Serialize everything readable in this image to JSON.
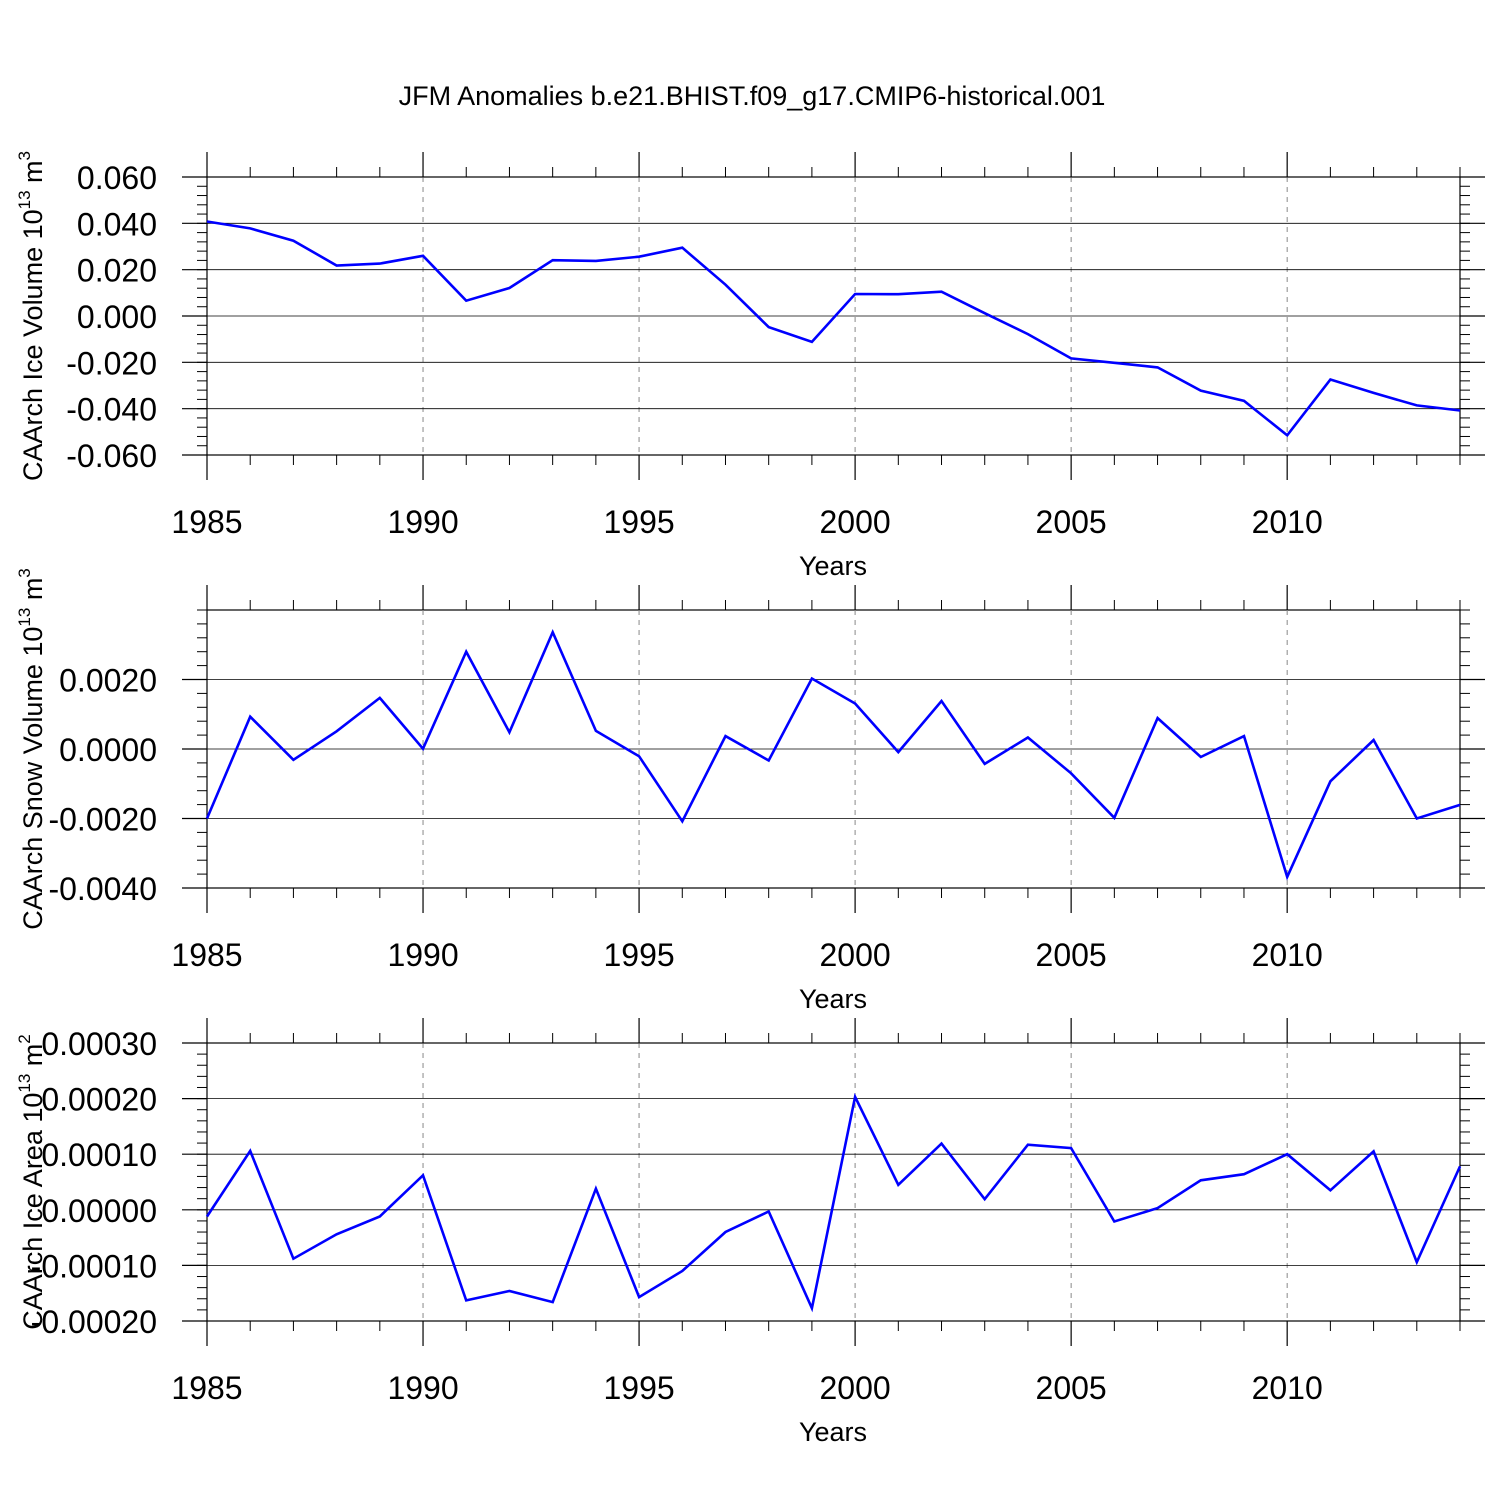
{
  "title": "JFM Anomalies b.e21.BHIST.f09_g17.CMIP6-historical.001",
  "line_color": "#0000ff",
  "chart_data": [
    {
      "type": "line",
      "title": "JFM Anomalies b.e21.BHIST.f09_g17.CMIP6-historical.001",
      "xlabel": "Years",
      "ylabel": "CAArch Ice Volume 10",
      "ylabel_exp": "13",
      "ylabel_unit": " m",
      "ylabel_unit_exp": "3",
      "xlim": [
        1985,
        2014
      ],
      "ylim": [
        -0.06,
        0.06
      ],
      "xticks": [
        1985,
        1990,
        1995,
        2000,
        2005,
        2010
      ],
      "xtick_labels": [
        "1985",
        "1990",
        "1995",
        "2000",
        "2005",
        "2010"
      ],
      "yticks": [
        -0.06,
        -0.04,
        -0.02,
        0.0,
        0.02,
        0.04,
        0.06
      ],
      "ytick_labels": [
        "-0.060",
        "-0.040",
        "-0.020",
        "0.000",
        "0.020",
        "0.040",
        "0.060"
      ],
      "series": [
        {
          "name": "CAArch Ice Volume",
          "x": [
            1985,
            1986,
            1987,
            1988,
            1989,
            1990,
            1991,
            1992,
            1993,
            1994,
            1995,
            1996,
            1997,
            1998,
            1999,
            2000,
            2001,
            2002,
            2003,
            2004,
            2005,
            2006,
            2007,
            2008,
            2009,
            2010,
            2011,
            2012,
            2013,
            2014
          ],
          "values": [
            0.0408,
            0.0378,
            0.0325,
            0.0218,
            0.0226,
            0.026,
            0.0066,
            0.0121,
            0.0241,
            0.0238,
            0.0256,
            0.0295,
            0.0135,
            -0.0048,
            -0.0112,
            0.0095,
            0.0094,
            0.0105,
            0.0012,
            -0.0078,
            -0.0183,
            -0.0202,
            -0.0222,
            -0.0322,
            -0.0366,
            -0.0515,
            -0.0274,
            -0.0332,
            -0.0386,
            -0.0408
          ]
        }
      ]
    },
    {
      "type": "line",
      "xlabel": "Years",
      "ylabel": "CAArch Snow Volume 10",
      "ylabel_exp": "13",
      "ylabel_unit": " m",
      "ylabel_unit_exp": "3",
      "xlim": [
        1985,
        2014
      ],
      "ylim": [
        -0.004,
        0.004
      ],
      "xticks": [
        1985,
        1990,
        1995,
        2000,
        2005,
        2010
      ],
      "xtick_labels": [
        "1985",
        "1990",
        "1995",
        "2000",
        "2005",
        "2010"
      ],
      "yticks": [
        -0.004,
        -0.002,
        0.0,
        0.002
      ],
      "ytick_labels": [
        "-0.0040",
        "-0.0020",
        "0.0000",
        "0.0020"
      ],
      "series": [
        {
          "name": "CAArch Snow Volume",
          "x": [
            1985,
            1986,
            1987,
            1988,
            1989,
            1990,
            1991,
            1992,
            1993,
            1994,
            1995,
            1996,
            1997,
            1998,
            1999,
            2000,
            2001,
            2002,
            2003,
            2004,
            2005,
            2006,
            2007,
            2008,
            2009,
            2010,
            2011,
            2012,
            2013,
            2014
          ],
          "values": [
            -0.002,
            0.00093,
            -0.00031,
            0.00051,
            0.00147,
            1e-05,
            0.0028,
            0.00048,
            0.00336,
            0.00052,
            -0.00021,
            -0.00208,
            0.00037,
            -0.00033,
            0.00203,
            0.00131,
            -9e-05,
            0.00138,
            -0.00043,
            0.00033,
            -0.0007,
            -0.00198,
            0.00089,
            -0.00023,
            0.00037,
            -0.00368,
            -0.00093,
            0.00026,
            -0.002,
            -0.00161
          ]
        }
      ]
    },
    {
      "type": "line",
      "xlabel": "Years",
      "ylabel": "CAArch Ice Area 10",
      "ylabel_exp": "13",
      "ylabel_unit": " m",
      "ylabel_unit_exp": "2",
      "xlim": [
        1985,
        2014
      ],
      "ylim": [
        -0.0002,
        0.0003
      ],
      "xticks": [
        1985,
        1990,
        1995,
        2000,
        2005,
        2010
      ],
      "xtick_labels": [
        "1985",
        "1990",
        "1995",
        "2000",
        "2005",
        "2010"
      ],
      "yticks": [
        -0.0002,
        -0.0001,
        0.0,
        0.0001,
        0.0002,
        0.0003
      ],
      "ytick_labels": [
        "-0.00020",
        "-0.00010",
        "0.00000",
        "0.00010",
        "0.00020",
        "0.00030"
      ],
      "series": [
        {
          "name": "CAArch Ice Area",
          "x": [
            1985,
            1986,
            1987,
            1988,
            1989,
            1990,
            1991,
            1992,
            1993,
            1994,
            1995,
            1996,
            1997,
            1998,
            1999,
            2000,
            2001,
            2002,
            2003,
            2004,
            2005,
            2006,
            2007,
            2008,
            2009,
            2010,
            2011,
            2012,
            2013,
            2014
          ],
          "values": [
            -1.2e-05,
            0.000106,
            -8.8e-05,
            -4.4e-05,
            -1.2e-05,
            6.2e-05,
            -0.000163,
            -0.000146,
            -0.000166,
            3.8e-05,
            -0.000157,
            -0.00011,
            -4e-05,
            -3e-06,
            -0.000177,
            0.000203,
            4.5e-05,
            0.000119,
            1.9e-05,
            0.000117,
            0.000111,
            -2.1e-05,
            3e-06,
            5.3e-05,
            6.4e-05,
            0.0001,
            3.5e-05,
            0.000105,
            -9.4e-05,
            7.8e-05
          ]
        }
      ]
    }
  ]
}
